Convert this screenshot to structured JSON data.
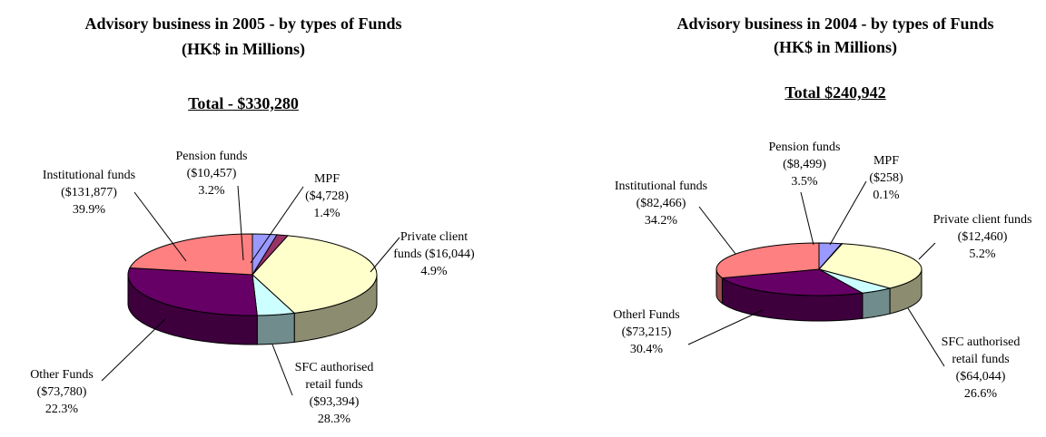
{
  "chart_data": [
    {
      "type": "pie3d",
      "title": "Advisory business in 2005 - by types of Funds",
      "subtitle": "(HK$ in Millions)",
      "total_label": "Total - $330,280",
      "categories": [
        "Pension funds",
        "MPF",
        "Institutional funds",
        "Private client funds",
        "SFC authorised retail funds",
        "Other Funds"
      ],
      "values": [
        10457,
        4728,
        131877,
        16044,
        93394,
        73780
      ],
      "value_labels": [
        "($10,457)",
        "($4,728)",
        "($131,877)",
        "($16,044)",
        "($93,394)",
        "($73,780)"
      ],
      "percents": [
        3.2,
        1.4,
        39.9,
        4.9,
        28.3,
        22.3
      ],
      "percent_labels": [
        "3.2%",
        "1.4%",
        "39.9%",
        "4.9%",
        "28.3%",
        "22.3%"
      ],
      "colors": [
        "#9999ff",
        "#993366",
        "#ffffcc",
        "#ccffff",
        "#660066",
        "#ff8080"
      ]
    },
    {
      "type": "pie3d",
      "title": "Advisory business in 2004 - by types of Funds",
      "subtitle": "(HK$ in Millions)",
      "total_label": "Total $240,942",
      "categories": [
        "Pension funds",
        "MPF",
        "Institutional funds",
        "Private client funds",
        "SFC authorised retail funds",
        "Otherl Funds"
      ],
      "values": [
        8499,
        258,
        82466,
        12460,
        64044,
        73215
      ],
      "value_labels": [
        "($8,499)",
        "($258)",
        "($82,466)",
        "($12,460)",
        "($64,044)",
        "($73,215)"
      ],
      "percents": [
        3.5,
        0.1,
        34.2,
        5.2,
        26.6,
        30.4
      ],
      "percent_labels": [
        "3.5%",
        "0.1%",
        "34.2%",
        "5.2%",
        "26.6%",
        "30.4%"
      ],
      "colors": [
        "#9999ff",
        "#993366",
        "#ffffcc",
        "#ccffff",
        "#660066",
        "#ff8080"
      ]
    }
  ]
}
